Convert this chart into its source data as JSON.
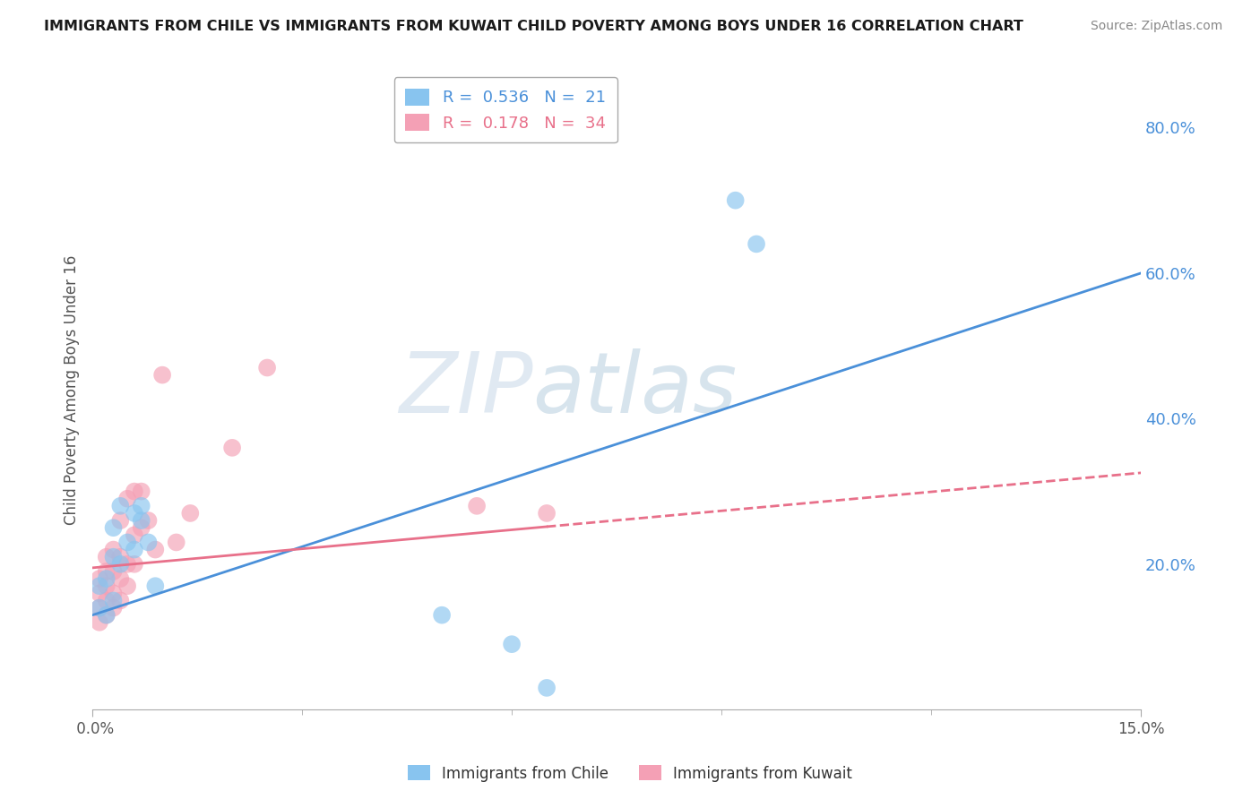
{
  "title": "IMMIGRANTS FROM CHILE VS IMMIGRANTS FROM KUWAIT CHILD POVERTY AMONG BOYS UNDER 16 CORRELATION CHART",
  "source": "Source: ZipAtlas.com",
  "ylabel": "Child Poverty Among Boys Under 16",
  "ytick_labels": [
    "20.0%",
    "40.0%",
    "60.0%",
    "80.0%"
  ],
  "ytick_values": [
    0.2,
    0.4,
    0.6,
    0.8
  ],
  "xlim": [
    0.0,
    0.15
  ],
  "ylim": [
    0.0,
    0.88
  ],
  "watermark_zip": "ZIP",
  "watermark_atlas": "atlas",
  "chile_R": 0.536,
  "chile_N": 21,
  "kuwait_R": 0.178,
  "kuwait_N": 34,
  "chile_color": "#88c4ef",
  "kuwait_color": "#f4a0b5",
  "chile_line_color": "#4a90d9",
  "kuwait_line_color": "#e8708a",
  "chile_x": [
    0.001,
    0.001,
    0.002,
    0.002,
    0.003,
    0.003,
    0.003,
    0.004,
    0.004,
    0.005,
    0.006,
    0.006,
    0.007,
    0.007,
    0.008,
    0.009,
    0.05,
    0.06,
    0.065,
    0.092,
    0.095
  ],
  "chile_y": [
    0.14,
    0.17,
    0.13,
    0.18,
    0.15,
    0.21,
    0.25,
    0.2,
    0.28,
    0.23,
    0.22,
    0.27,
    0.26,
    0.28,
    0.23,
    0.17,
    0.13,
    0.09,
    0.03,
    0.7,
    0.64
  ],
  "kuwait_x": [
    0.001,
    0.001,
    0.001,
    0.001,
    0.002,
    0.002,
    0.002,
    0.002,
    0.002,
    0.003,
    0.003,
    0.003,
    0.003,
    0.004,
    0.004,
    0.004,
    0.004,
    0.005,
    0.005,
    0.005,
    0.006,
    0.006,
    0.006,
    0.007,
    0.007,
    0.008,
    0.009,
    0.01,
    0.012,
    0.014,
    0.02,
    0.025,
    0.055,
    0.065
  ],
  "kuwait_y": [
    0.12,
    0.14,
    0.16,
    0.18,
    0.13,
    0.15,
    0.17,
    0.19,
    0.21,
    0.14,
    0.16,
    0.19,
    0.22,
    0.15,
    0.18,
    0.21,
    0.26,
    0.17,
    0.2,
    0.29,
    0.2,
    0.24,
    0.3,
    0.25,
    0.3,
    0.26,
    0.22,
    0.46,
    0.23,
    0.27,
    0.36,
    0.47,
    0.28,
    0.27
  ],
  "background_color": "#ffffff",
  "grid_color": "#cccccc"
}
